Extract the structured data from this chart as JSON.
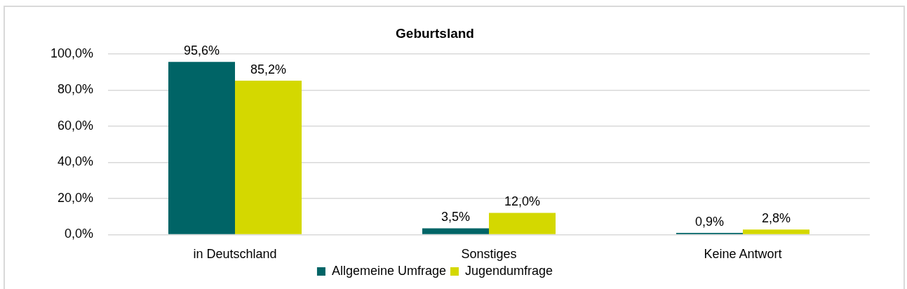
{
  "chart_data": {
    "type": "bar",
    "title": "Geburtsland",
    "categories": [
      "in Deutschland",
      "Sonstiges",
      "Keine Antwort"
    ],
    "series": [
      {
        "name": "Allgemeine Umfrage",
        "color": "#006466",
        "values": [
          95.6,
          3.5,
          0.9
        ],
        "value_labels": [
          "95,6%",
          "3,5%",
          "0,9%"
        ]
      },
      {
        "name": "Jugendumfrage",
        "color": "#d4d800",
        "values": [
          85.2,
          12.0,
          2.8
        ],
        "value_labels": [
          "85,2%",
          "12,0%",
          "2,8%"
        ]
      }
    ],
    "ylim": [
      0,
      100
    ],
    "yticks": [
      {
        "value": 0,
        "label": "0,0%"
      },
      {
        "value": 20,
        "label": "20,0%"
      },
      {
        "value": 40,
        "label": "40,0%"
      },
      {
        "value": 60,
        "label": "60,0%"
      },
      {
        "value": 80,
        "label": "80,0%"
      },
      {
        "value": 100,
        "label": "100,0%"
      }
    ],
    "grid": "y",
    "legend": "bottom"
  }
}
